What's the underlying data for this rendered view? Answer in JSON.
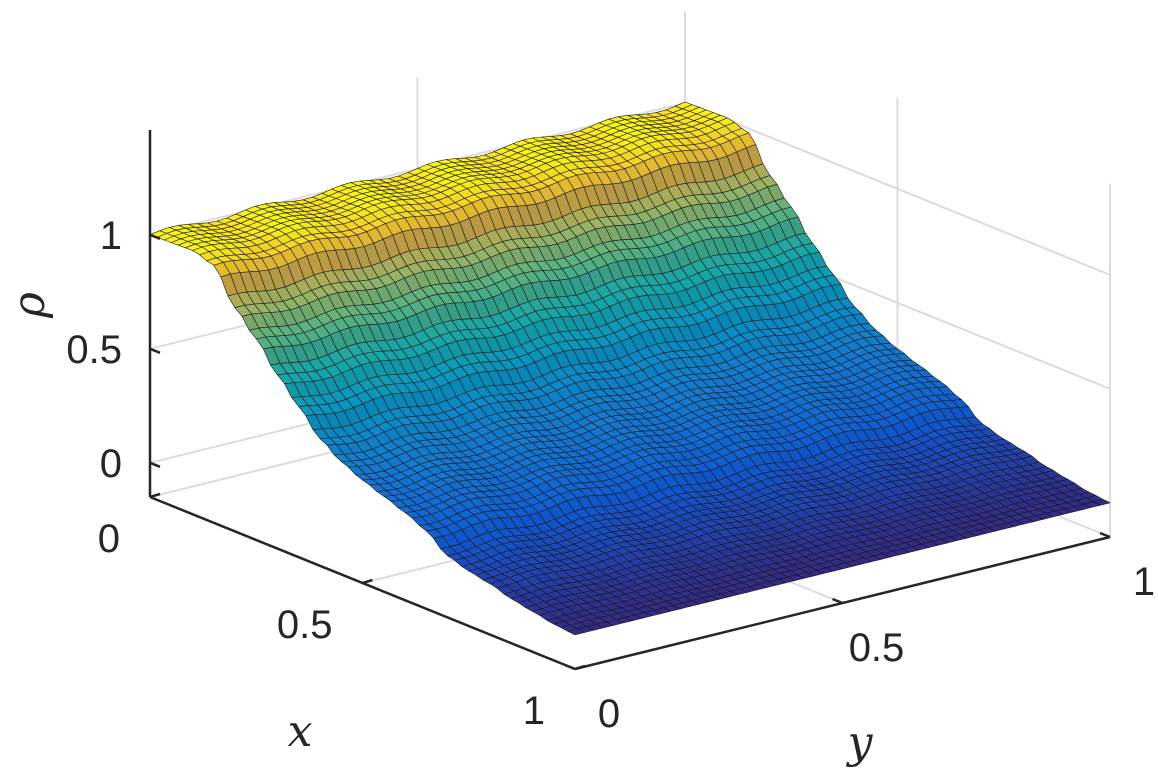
{
  "chart_data": {
    "type": "surface",
    "title": "",
    "xlabel": "x",
    "ylabel": "y",
    "zlabel": "ρ",
    "xlim": [
      0,
      1
    ],
    "ylim": [
      0,
      1
    ],
    "zlim": [
      -0.15,
      1.4
    ],
    "x_ticks": [
      {
        "value": 0,
        "label": "0"
      },
      {
        "value": 0.5,
        "label": "0.5"
      },
      {
        "value": 1,
        "label": "1"
      }
    ],
    "y_ticks": [
      {
        "value": 0,
        "label": "0"
      },
      {
        "value": 0.5,
        "label": "0.5"
      },
      {
        "value": 1,
        "label": "1"
      }
    ],
    "z_ticks": [
      {
        "value": 0,
        "label": "0"
      },
      {
        "value": 0.5,
        "label": "0.5"
      },
      {
        "value": 1,
        "label": "1"
      }
    ],
    "grid": true,
    "colormap": "parula",
    "surface_profile": {
      "x": [
        0.0,
        0.05,
        0.1,
        0.15,
        0.2,
        0.25,
        0.3,
        0.35,
        0.4,
        0.45,
        0.5,
        0.55,
        0.6,
        0.65,
        0.7,
        0.75,
        0.8,
        0.85,
        0.9,
        0.95,
        1.0
      ],
      "rho": [
        1.0,
        1.0,
        1.0,
        0.97,
        0.82,
        0.72,
        0.6,
        0.5,
        0.4,
        0.34,
        0.3,
        0.27,
        0.24,
        0.2,
        0.13,
        0.1,
        0.08,
        0.05,
        0.03,
        0.01,
        0.0
      ]
    }
  }
}
